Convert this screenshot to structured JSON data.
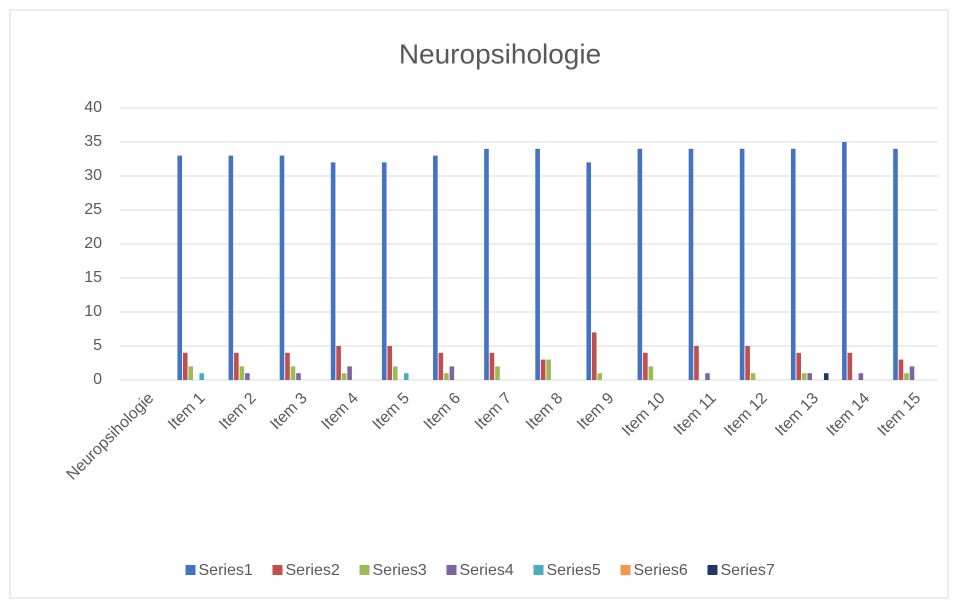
{
  "chart_data": {
    "type": "bar",
    "title": "Neuropsihologie",
    "categories": [
      "Neuropsihologie",
      "Item 1",
      "Item 2",
      "Item 3",
      "Item 4",
      "Item 5",
      "Item 6",
      "Item 7",
      "Item 8",
      "Item 9",
      "Item 10",
      "Item 11",
      "Item 12",
      "Item 13",
      "Item 14",
      "Item 15"
    ],
    "series": [
      {
        "name": "Series1",
        "color": "#4472c4",
        "values": [
          null,
          33,
          33,
          33,
          32,
          32,
          33,
          34,
          34,
          32,
          34,
          34,
          34,
          34,
          35,
          34
        ]
      },
      {
        "name": "Series2",
        "color": "#c0504d",
        "values": [
          null,
          4,
          4,
          4,
          5,
          5,
          4,
          4,
          3,
          7,
          4,
          5,
          5,
          4,
          4,
          3
        ]
      },
      {
        "name": "Series3",
        "color": "#9bbb59",
        "values": [
          null,
          2,
          2,
          2,
          1,
          2,
          1,
          2,
          3,
          1,
          2,
          0,
          1,
          1,
          0,
          1
        ]
      },
      {
        "name": "Series4",
        "color": "#8064a2",
        "values": [
          null,
          0,
          1,
          1,
          2,
          0,
          2,
          0,
          0,
          0,
          0,
          1,
          0,
          1,
          1,
          2
        ]
      },
      {
        "name": "Series5",
        "color": "#4bacc6",
        "values": [
          null,
          1,
          0,
          0,
          0,
          1,
          0,
          0,
          0,
          0,
          0,
          0,
          0,
          0,
          0,
          0
        ]
      },
      {
        "name": "Series6",
        "color": "#f79646",
        "values": [
          null,
          0,
          0,
          0,
          0,
          0,
          0,
          0,
          0,
          0,
          0,
          0,
          0,
          0,
          0,
          0
        ]
      },
      {
        "name": "Series7",
        "color": "#1f3864",
        "values": [
          null,
          0,
          0,
          0,
          0,
          0,
          0,
          0,
          0,
          0,
          0,
          0,
          0,
          1,
          0,
          0
        ]
      }
    ],
    "ylim": [
      0,
      40
    ],
    "yticks": [
      0,
      5,
      10,
      15,
      20,
      25,
      30,
      35,
      40
    ],
    "grid": true,
    "legend": "bottom"
  }
}
